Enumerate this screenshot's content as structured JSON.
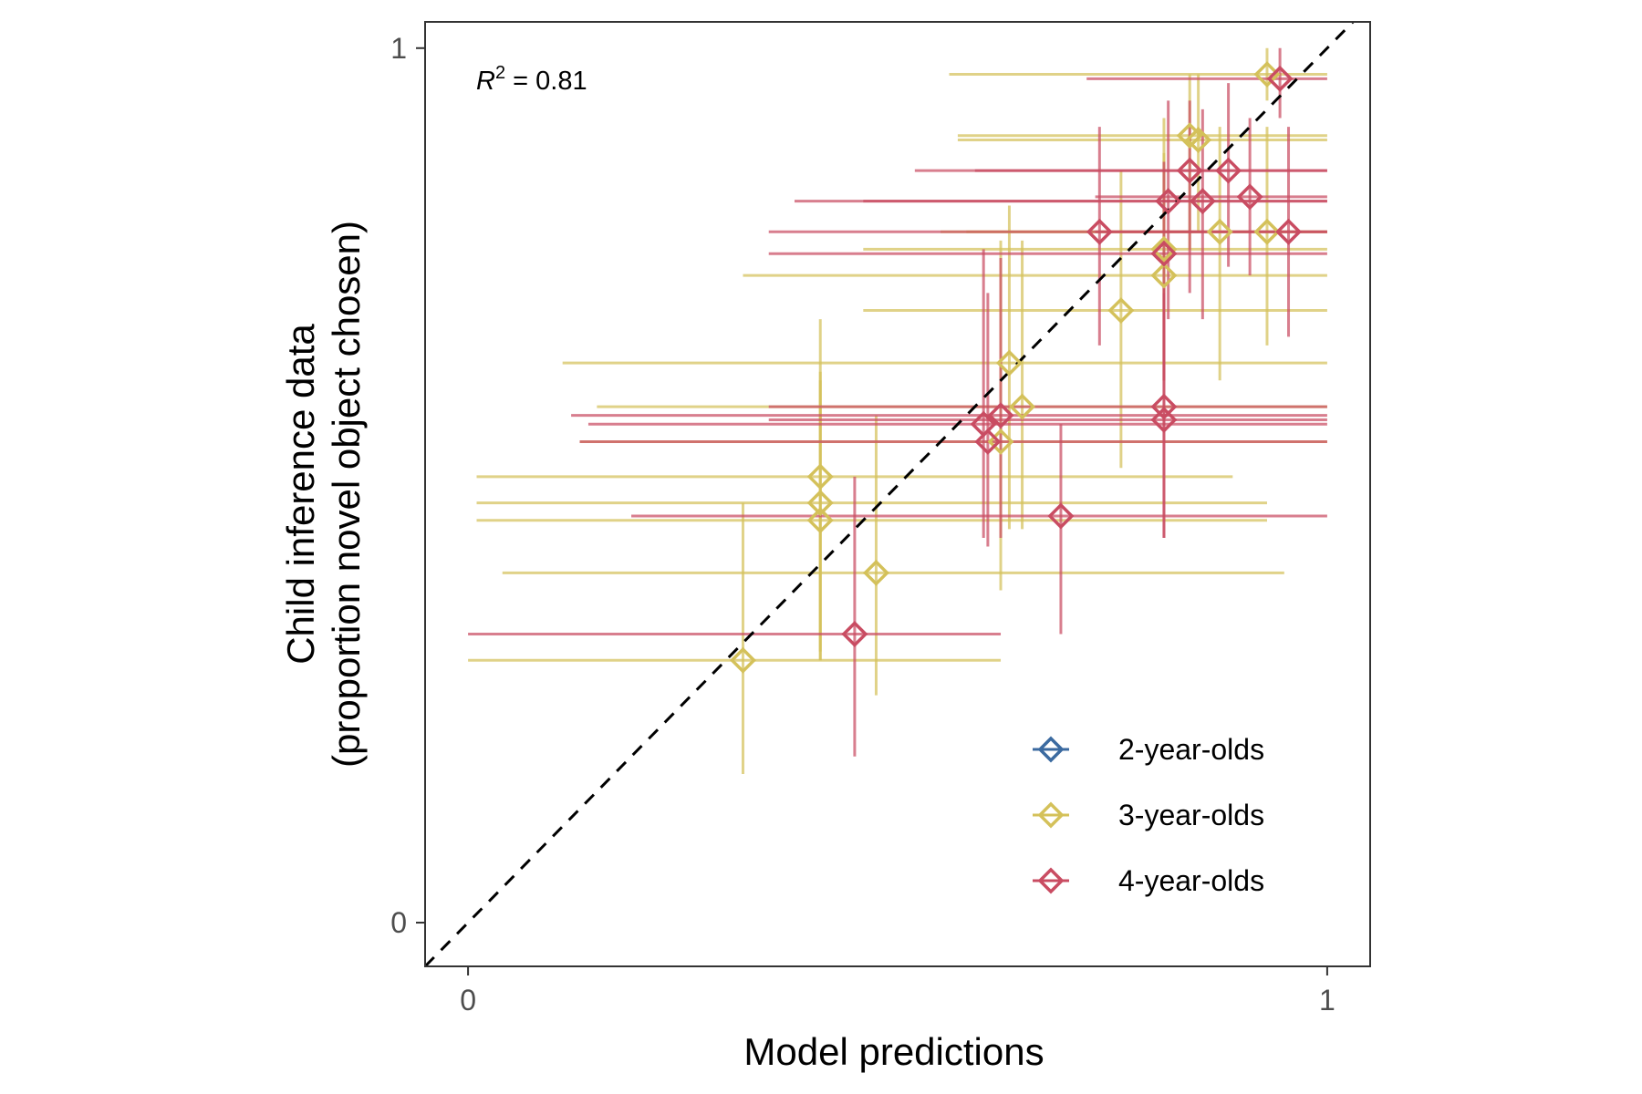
{
  "chart_data": {
    "type": "scatter",
    "xlabel": "Model predictions",
    "ylabel_lines": [
      "Child inference data",
      "(proportion novel object chosen)"
    ],
    "xlim": [
      -0.05,
      1.05
    ],
    "ylim": [
      -0.05,
      1.03
    ],
    "x_ticks": [
      0,
      1
    ],
    "y_ticks": [
      0,
      1
    ],
    "x_tick_labels": [
      "0",
      "1"
    ],
    "y_tick_labels": [
      "0",
      "1"
    ],
    "grid": false,
    "reference_line": "y = x (dashed)",
    "annotation": {
      "prefix": "R",
      "superscript": "2",
      "suffix": " = 0.81"
    },
    "legend_position": "bottom-right",
    "series": [
      {
        "name": "2-year-olds",
        "color": "#3b6aa0",
        "points": []
      },
      {
        "name": "3-year-olds",
        "color": "#d4c15a",
        "points": [
          {
            "x": 0.32,
            "y": 0.3,
            "xerr": [
              0.0,
              0.62
            ],
            "yerr": [
              0.17,
              0.48
            ]
          },
          {
            "x": 0.41,
            "y": 0.46,
            "xerr": [
              0.01,
              0.93
            ],
            "yerr": [
              0.3,
              0.62
            ]
          },
          {
            "x": 0.41,
            "y": 0.48,
            "xerr": [
              0.01,
              0.93
            ],
            "yerr": [
              0.31,
              0.63
            ]
          },
          {
            "x": 0.41,
            "y": 0.51,
            "xerr": [
              0.01,
              0.89
            ],
            "yerr": [
              0.3,
              0.69
            ]
          },
          {
            "x": 0.475,
            "y": 0.4,
            "xerr": [
              0.04,
              0.95
            ],
            "yerr": [
              0.26,
              0.58
            ]
          },
          {
            "x": 0.62,
            "y": 0.55,
            "xerr": [
              0.13,
              1.0
            ],
            "yerr": [
              0.38,
              0.78
            ]
          },
          {
            "x": 0.63,
            "y": 0.64,
            "xerr": [
              0.11,
              1.0
            ],
            "yerr": [
              0.45,
              0.82
            ]
          },
          {
            "x": 0.645,
            "y": 0.59,
            "xerr": [
              0.15,
              1.0
            ],
            "yerr": [
              0.45,
              0.78
            ]
          },
          {
            "x": 0.76,
            "y": 0.7,
            "xerr": [
              0.46,
              1.0
            ],
            "yerr": [
              0.52,
              0.86
            ]
          },
          {
            "x": 0.81,
            "y": 0.74,
            "xerr": [
              0.32,
              1.0
            ],
            "yerr": [
              0.62,
              0.88
            ]
          },
          {
            "x": 0.81,
            "y": 0.77,
            "xerr": [
              0.46,
              1.0
            ],
            "yerr": [
              0.62,
              0.92
            ]
          },
          {
            "x": 0.84,
            "y": 0.9,
            "xerr": [
              0.57,
              1.0
            ],
            "yerr": [
              0.77,
              0.97
            ]
          },
          {
            "x": 0.85,
            "y": 0.895,
            "xerr": [
              0.57,
              1.0
            ],
            "yerr": [
              0.79,
              0.97
            ]
          },
          {
            "x": 0.875,
            "y": 0.79,
            "xerr": [
              0.55,
              1.0
            ],
            "yerr": [
              0.62,
              0.91
            ]
          },
          {
            "x": 0.93,
            "y": 0.79,
            "xerr": [
              0.58,
              1.0
            ],
            "yerr": [
              0.66,
              0.91
            ]
          },
          {
            "x": 0.93,
            "y": 0.97,
            "xerr": [
              0.56,
              1.0
            ],
            "yerr": [
              0.94,
              1.0
            ]
          }
        ]
      },
      {
        "name": "4-year-olds",
        "color": "#c94c62",
        "points": [
          {
            "x": 0.45,
            "y": 0.33,
            "xerr": [
              0.0,
              0.62
            ],
            "yerr": [
              0.19,
              0.51
            ]
          },
          {
            "x": 0.6,
            "y": 0.57,
            "xerr": [
              0.14,
              1.0
            ],
            "yerr": [
              0.44,
              0.77
            ]
          },
          {
            "x": 0.605,
            "y": 0.55,
            "xerr": [
              0.13,
              1.0
            ],
            "yerr": [
              0.43,
              0.72
            ]
          },
          {
            "x": 0.62,
            "y": 0.58,
            "xerr": [
              0.12,
              1.0
            ],
            "yerr": [
              0.44,
              0.76
            ]
          },
          {
            "x": 0.69,
            "y": 0.465,
            "xerr": [
              0.19,
              1.0
            ],
            "yerr": [
              0.33,
              0.57
            ]
          },
          {
            "x": 0.735,
            "y": 0.79,
            "xerr": [
              0.35,
              1.0
            ],
            "yerr": [
              0.66,
              0.91
            ]
          },
          {
            "x": 0.81,
            "y": 0.575,
            "xerr": [
              0.35,
              1.0
            ],
            "yerr": [
              0.44,
              0.72
            ]
          },
          {
            "x": 0.81,
            "y": 0.59,
            "xerr": [
              0.35,
              1.0
            ],
            "yerr": [
              0.44,
              0.73
            ]
          },
          {
            "x": 0.81,
            "y": 0.765,
            "xerr": [
              0.35,
              1.0
            ],
            "yerr": [
              0.62,
              0.87
            ]
          },
          {
            "x": 0.815,
            "y": 0.825,
            "xerr": [
              0.46,
              1.0
            ],
            "yerr": [
              0.69,
              0.94
            ]
          },
          {
            "x": 0.84,
            "y": 0.86,
            "xerr": [
              0.52,
              1.0
            ],
            "yerr": [
              0.72,
              0.94
            ]
          },
          {
            "x": 0.855,
            "y": 0.825,
            "xerr": [
              0.38,
              1.0
            ],
            "yerr": [
              0.69,
              0.93
            ]
          },
          {
            "x": 0.885,
            "y": 0.86,
            "xerr": [
              0.59,
              1.0
            ],
            "yerr": [
              0.75,
              0.96
            ]
          },
          {
            "x": 0.91,
            "y": 0.83,
            "xerr": [
              0.73,
              1.0
            ],
            "yerr": [
              0.74,
              0.92
            ]
          },
          {
            "x": 0.945,
            "y": 0.965,
            "xerr": [
              0.72,
              1.0
            ],
            "yerr": [
              0.92,
              1.0
            ]
          },
          {
            "x": 0.955,
            "y": 0.79,
            "xerr": [
              0.73,
              1.0
            ],
            "yerr": [
              0.67,
              0.91
            ]
          }
        ]
      }
    ]
  }
}
